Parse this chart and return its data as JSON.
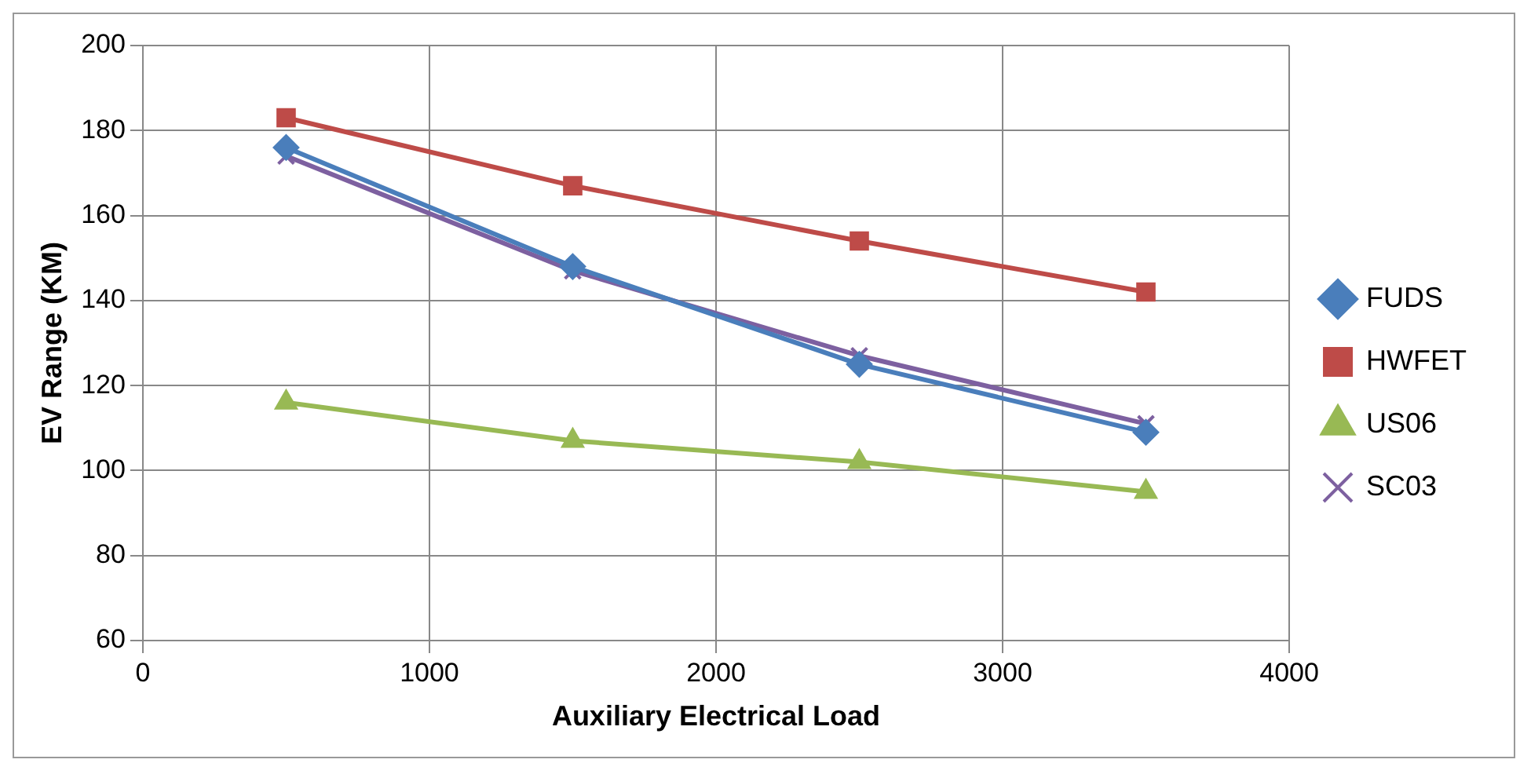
{
  "chart_data": {
    "type": "line",
    "xlabel": "Auxiliary Electrical Load",
    "ylabel": "EV Range (KM)",
    "x": [
      500,
      1500,
      2500,
      3500
    ],
    "series": [
      {
        "name": "FUDS",
        "color": "#4a7ebb",
        "marker": "diamond",
        "values": [
          176,
          148,
          125,
          109
        ]
      },
      {
        "name": "HWFET",
        "color": "#be4b48",
        "marker": "square",
        "values": [
          183,
          167,
          154,
          142
        ]
      },
      {
        "name": "US06",
        "color": "#98b954",
        "marker": "triangle",
        "values": [
          116,
          107,
          102,
          95
        ]
      },
      {
        "name": "SC03",
        "color": "#7d60a0",
        "marker": "cross",
        "values": [
          174,
          147,
          127,
          111
        ]
      }
    ],
    "xlim": [
      0,
      4000
    ],
    "xticks": [
      0,
      1000,
      2000,
      3000,
      4000
    ],
    "ylim": [
      60,
      200
    ],
    "yticks": [
      60,
      80,
      100,
      120,
      140,
      160,
      180,
      200
    ],
    "grid": true,
    "legend": "right",
    "line_style": "solid"
  }
}
